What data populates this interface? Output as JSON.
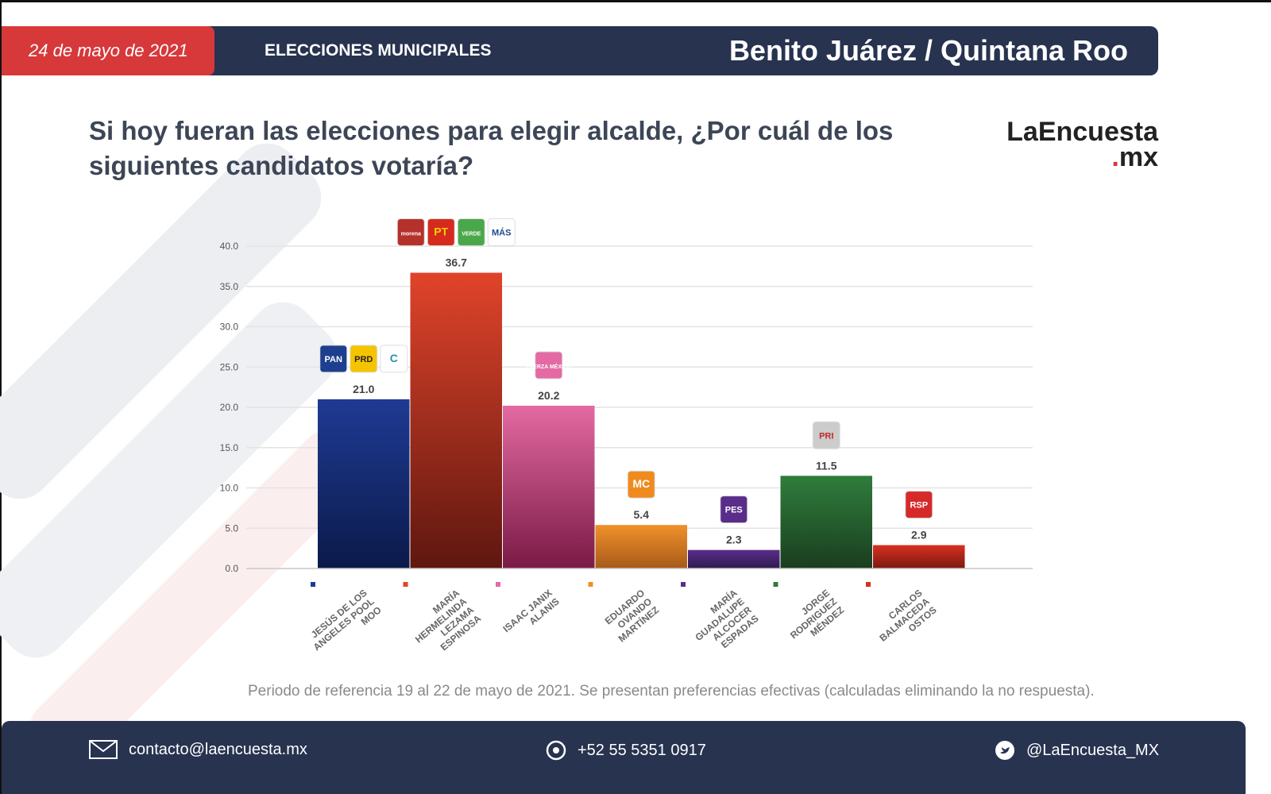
{
  "header": {
    "date": "24 de mayo de 2021",
    "section": "ELECCIONES MUNICIPALES",
    "place": "Benito Juárez / Quintana Roo"
  },
  "question": "Si hoy fueran las elecciones para elegir alcalde, ¿Por cuál de los siguientes candidatos votaría?",
  "brand": {
    "name": "LaEncuesta",
    "dot": ".",
    "tld": "mx"
  },
  "note": "Periodo de referencia 19 al 22 de mayo de 2021. Se presentan preferencias efectivas (calculadas eliminando la no respuesta).",
  "footer": {
    "email": "contacto@laencuesta.mx",
    "phone": "+52 55 5351 0917",
    "twitter": "@LaEncuesta_MX"
  },
  "chart_data": {
    "type": "bar",
    "title": "",
    "xlabel": "",
    "ylabel": "",
    "ylim": [
      0,
      40
    ],
    "yticks": [
      "0.0",
      "5.0",
      "10.0",
      "15.0",
      "20.0",
      "25.0",
      "30.0",
      "35.0",
      "40.0"
    ],
    "categories": [
      "JESÚS DE LOS ANGELES POOL MOO",
      "MARÍA HERMELINDA LEZAMA ESPINOSA",
      "ISAAC JANIX ALANIS",
      "EDUARDO OVANDO MARTÍNEZ",
      "MARÍA GUADALUPE ALCOCER ESPADAS",
      "JORGE RODRIGUEZ MÉNDEZ",
      "CARLOS BALMACEDA OSTOS"
    ],
    "values": [
      21.0,
      36.7,
      20.2,
      5.4,
      2.3,
      11.5,
      2.9
    ],
    "labels": [
      "21.0",
      "36.7",
      "20.2",
      "5.4",
      "2.3",
      "11.5",
      "2.9"
    ],
    "colors": [
      [
        "#1f3a93",
        "#0b1a4a"
      ],
      [
        "#e0442a",
        "#5e1710"
      ],
      [
        "#e36aa2",
        "#7a1a45"
      ],
      [
        "#f0902a",
        "#a85a1a"
      ],
      [
        "#5a2d8a",
        "#2e1a4d"
      ],
      [
        "#2f7d3b",
        "#1a3d20"
      ],
      [
        "#d83020",
        "#7a1a10"
      ]
    ],
    "parties": [
      [
        {
          "t": "PAN",
          "bg": "#1d3f8f",
          "fg": "#fff"
        },
        {
          "t": "PRD",
          "bg": "#f5c400",
          "fg": "#222"
        },
        {
          "t": "C",
          "bg": "#fff",
          "fg": "#2a8fa8"
        }
      ],
      [
        {
          "t": "morena",
          "bg": "#b5312a",
          "fg": "#fff"
        },
        {
          "t": "PT",
          "bg": "#d62a1e",
          "fg": "#f5d000"
        },
        {
          "t": "VERDE",
          "bg": "#4aa84a",
          "fg": "#fff"
        },
        {
          "t": "MÁS",
          "bg": "#fff",
          "fg": "#1a4a8a"
        }
      ],
      [
        {
          "t": "FUERZA MÉXICO",
          "bg": "#e36aa2",
          "fg": "#fff"
        }
      ],
      [
        {
          "t": "MC",
          "bg": "#f08a1e",
          "fg": "#fff"
        }
      ],
      [
        {
          "t": "PES",
          "bg": "#5a2d8a",
          "fg": "#fff"
        }
      ],
      [
        {
          "t": "PRI",
          "bg": "#ccc",
          "fg": "#c0282a"
        }
      ],
      [
        {
          "t": "RSP",
          "bg": "#d62a2a",
          "fg": "#fff"
        }
      ]
    ]
  }
}
